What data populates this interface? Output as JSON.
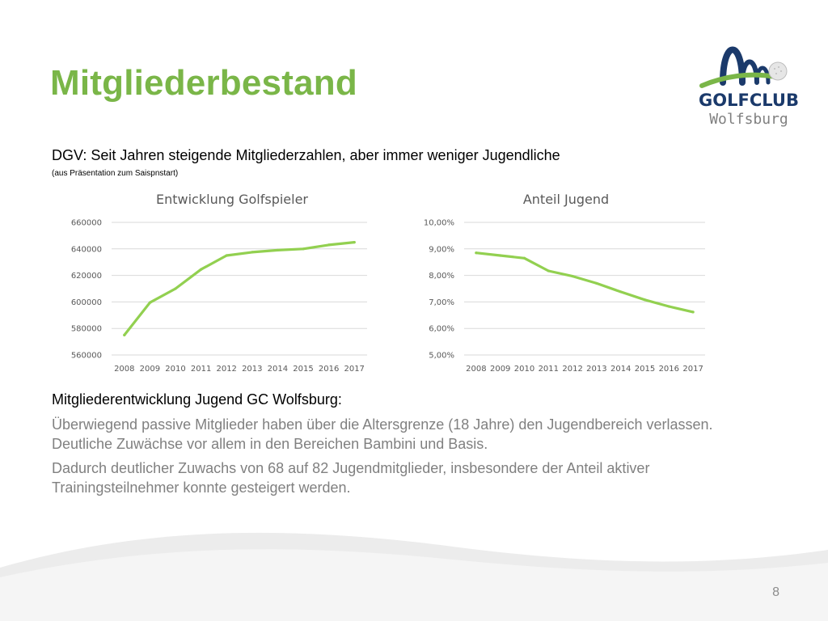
{
  "slide": {
    "title": "Mitgliederbestand",
    "headline": "DGV: Seit Jahren steigende Mitgliederzahlen, aber immer weniger Jugendliche",
    "source": "(aus Präsentation zum Saispnstart)",
    "subheading": "Mitgliederentwicklung Jugend GC Wolfsburg:",
    "paragraphs": [
      "Überwiegend passive Mitglieder haben über die Altersgrenze (18 Jahre) den Jugendbereich verlassen. Deutliche Zuwächse vor allem in den Bereichen Bambini und Basis.",
      "Dadurch deutlicher Zuwachs von 68 auf 82 Jugendmitglieder, insbesondere der Anteil aktiver Trainingsteilnehmer konnte gesteigert werden."
    ],
    "page_number": "8"
  },
  "logo": {
    "line1": "GOLFCLUB",
    "line2": "Wolfsburg",
    "colors": {
      "navy": "#1b3a6b",
      "green": "#7ab648",
      "ball": "#d9d9d9"
    }
  },
  "colors": {
    "accent": "#7ab648",
    "line": "#92d050",
    "grid": "#d9d9d9",
    "axis_text": "#595959",
    "body_gray": "#808080"
  },
  "chart_data": [
    {
      "type": "line",
      "title": "Entwicklung Golfspieler",
      "categories": [
        "2008",
        "2009",
        "2010",
        "2011",
        "2012",
        "2013",
        "2014",
        "2015",
        "2016",
        "2017"
      ],
      "series": [
        {
          "values": [
            575000,
            599500,
            610000,
            624500,
            635000,
            637500,
            639000,
            640000,
            643000,
            645000
          ]
        }
      ],
      "ylim": [
        560000,
        660000
      ],
      "yticks": [
        560000,
        580000,
        600000,
        620000,
        640000,
        660000
      ],
      "ytick_labels": [
        "560000",
        "580000",
        "600000",
        "620000",
        "640000",
        "660000"
      ],
      "grid": true,
      "legend": "none",
      "line_color": "#92d050"
    },
    {
      "type": "line",
      "title": "Anteil Jugend",
      "categories": [
        "2008",
        "2009",
        "2010",
        "2011",
        "2012",
        "2013",
        "2014",
        "2015",
        "2016",
        "2017"
      ],
      "series": [
        {
          "values": [
            8.85,
            8.75,
            8.65,
            8.17,
            7.97,
            7.7,
            7.38,
            7.08,
            6.83,
            6.62
          ]
        }
      ],
      "ylim": [
        5,
        10
      ],
      "yticks": [
        5,
        6,
        7,
        8,
        9,
        10
      ],
      "ytick_labels": [
        "5,00%",
        "6,00%",
        "7,00%",
        "8,00%",
        "9,00%",
        "10,00%"
      ],
      "grid": true,
      "legend": "none",
      "line_color": "#92d050"
    }
  ]
}
